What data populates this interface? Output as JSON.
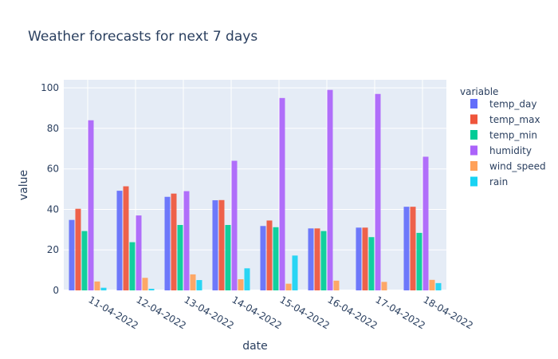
{
  "chart_data": {
    "type": "bar",
    "title": "Weather forecasts for next 7 days",
    "xlabel": "date",
    "ylabel": "value",
    "ylim": [
      0,
      104
    ],
    "yticks": [
      0,
      20,
      40,
      60,
      80,
      100
    ],
    "legend_title": "variable",
    "legend_placement": "right",
    "grid": true,
    "categories": [
      "11-04-2022",
      "12-04-2022",
      "13-04-2022",
      "14-04-2022",
      "15-04-2022",
      "16-04-2022",
      "17-04-2022",
      "18-04-2022"
    ],
    "series": [
      {
        "name": "temp_day",
        "color": "#636efa",
        "values": [
          34.8,
          49.2,
          46.2,
          44.5,
          31.8,
          30.6,
          31.0,
          41.3
        ]
      },
      {
        "name": "temp_max",
        "color": "#ef553b",
        "values": [
          40.3,
          51.4,
          47.8,
          44.6,
          34.5,
          30.6,
          31.0,
          41.3
        ]
      },
      {
        "name": "temp_min",
        "color": "#00cc96",
        "values": [
          29.3,
          23.8,
          32.3,
          32.3,
          31.2,
          29.3,
          26.3,
          28.4
        ]
      },
      {
        "name": "humidity",
        "color": "#ab63fa",
        "values": [
          84,
          37,
          49,
          64,
          95,
          99,
          97,
          66
        ]
      },
      {
        "name": "wind_speed",
        "color": "#ffa15a",
        "values": [
          4.4,
          6.2,
          7.9,
          5.5,
          3.3,
          4.8,
          4.2,
          5.2
        ]
      },
      {
        "name": "rain",
        "color": "#19d3f3",
        "values": [
          1.3,
          0.8,
          5.1,
          10.9,
          17.2,
          0,
          0,
          3.6
        ]
      }
    ]
  }
}
